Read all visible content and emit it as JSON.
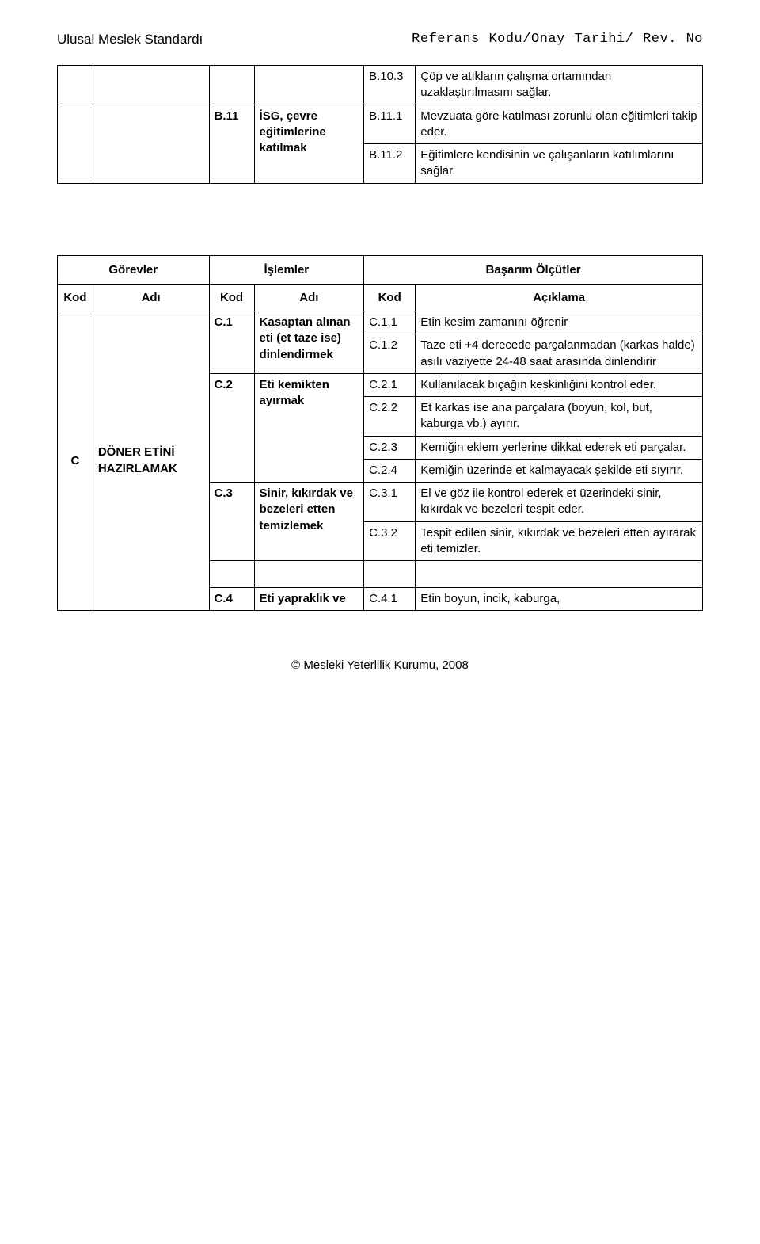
{
  "header": {
    "left": "Ulusal Meslek Standardı",
    "right": "Referans Kodu/Onay Tarihi/ Rev. No"
  },
  "table1": {
    "rows": [
      {
        "code": "B.10.3",
        "desc": "Çöp ve atıkların çalışma ortamından uzaklaştırılmasını sağlar."
      },
      {
        "leftCode": "B.11",
        "leftName": "İSG, çevre eğitimlerine katılmak",
        "code": "B.11.1",
        "desc": "Mevzuata göre katılması zorunlu olan eğitimleri takip eder."
      },
      {
        "code": "B.11.2",
        "desc": "Eğitimlere kendisinin ve çalışanların katılımlarını sağlar."
      }
    ]
  },
  "captions": {
    "gorevler": "Görevler",
    "islemler": "İşlemler",
    "basarim": "Başarım Ölçütler",
    "kod": "Kod",
    "adi": "Adı",
    "aciklama": "Açıklama"
  },
  "table2": {
    "mainCode": "C",
    "mainName": "DÖNER ETİNİ HAZIRLAMAK",
    "groups": [
      {
        "gCode": "C.1",
        "gName": "Kasaptan alınan eti (et taze ise) dinlendirmek",
        "items": [
          {
            "c": "C.1.1",
            "d": "Etin kesim zamanını öğrenir"
          },
          {
            "c": "C.1.2",
            "d": "Taze eti +4 derecede parçalanmadan (karkas halde) asılı vaziyette 24-48 saat arasında dinlendirir"
          }
        ]
      },
      {
        "gCode": "C.2",
        "gName": "Eti kemikten ayırmak",
        "items": [
          {
            "c": "C.2.1",
            "d": "Kullanılacak bıçağın keskinliğini kontrol eder."
          },
          {
            "c": "C.2.2",
            "d": "Et karkas ise ana parçalara (boyun, kol, but, kaburga  vb.) ayırır."
          },
          {
            "c": "C.2.3",
            "d": "Kemiğin eklem yerlerine dikkat ederek eti parçalar."
          },
          {
            "c": "C.2.4",
            "d": "Kemiğin üzerinde et kalmayacak şekilde eti sıyırır."
          }
        ]
      },
      {
        "gCode": "C.3",
        "gName": "Sinir, kıkırdak ve bezeleri etten temizlemek",
        "items": [
          {
            "c": "C.3.1",
            "d": "El ve göz ile kontrol ederek et üzerindeki sinir, kıkırdak ve bezeleri tespit eder."
          },
          {
            "c": "C.3.2",
            "d": "Tespit edilen sinir,  kıkırdak ve bezeleri etten ayırarak eti temizler."
          }
        ]
      },
      {
        "gCode": "C.4",
        "gName": "Eti yapraklık ve",
        "items": [
          {
            "c": "C.4.1",
            "d": "Etin boyun, incik, kaburga,"
          }
        ]
      }
    ]
  },
  "footer": "© Mesleki Yeterlilik Kurumu, 2008"
}
